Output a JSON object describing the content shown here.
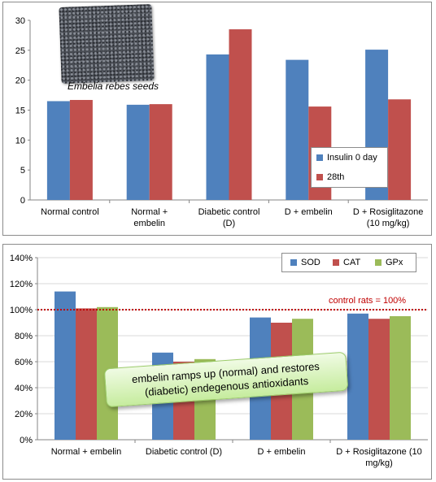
{
  "colors": {
    "blue": "#4f81bd",
    "red": "#c0504d",
    "green": "#9bbb59",
    "reference_line": "#c00000"
  },
  "chart_data": [
    {
      "type": "bar",
      "categories": [
        [
          "Normal control"
        ],
        [
          "Normal +",
          "embelin"
        ],
        [
          "Diabetic control",
          "(D)"
        ],
        [
          "D + embelin"
        ],
        [
          "D + Rosiglitazone",
          "(10 mg/kg)"
        ]
      ],
      "series": [
        {
          "name": "Insulin 0 day",
          "values": [
            16.5,
            15.9,
            24.3,
            23.4,
            25.1
          ]
        },
        {
          "name": "28th",
          "values": [
            16.7,
            16.0,
            28.5,
            15.6,
            16.8
          ]
        }
      ],
      "ylim": [
        0,
        30
      ],
      "yticks": [
        "0",
        "5",
        "10",
        "15",
        "20",
        "25",
        "30"
      ],
      "legend": "right",
      "image_caption": "Embelia rebes seeds"
    },
    {
      "type": "bar",
      "categories": [
        [
          "Normal + embelin"
        ],
        [
          "Diabetic control (D)"
        ],
        [
          "D + embelin"
        ],
        [
          "D + Rosiglitazone  (10",
          "mg/kg)"
        ]
      ],
      "series": [
        {
          "name": "SOD",
          "values": [
            114,
            67,
            94,
            97
          ]
        },
        {
          "name": "CAT",
          "values": [
            101,
            60,
            90,
            93
          ]
        },
        {
          "name": "GPx",
          "values": [
            102,
            62,
            93,
            95
          ]
        }
      ],
      "ylim": [
        0,
        140
      ],
      "yticks": [
        "0%",
        "20%",
        "40%",
        "60%",
        "80%",
        "100%",
        "120%",
        "140%"
      ],
      "legend": "top-right",
      "reference": {
        "value": 100,
        "label": "control rats = 100%"
      },
      "annotation": [
        "embelin ramps up  (normal) and  restores",
        "(diabetic) endegenous antioxidants"
      ]
    }
  ]
}
